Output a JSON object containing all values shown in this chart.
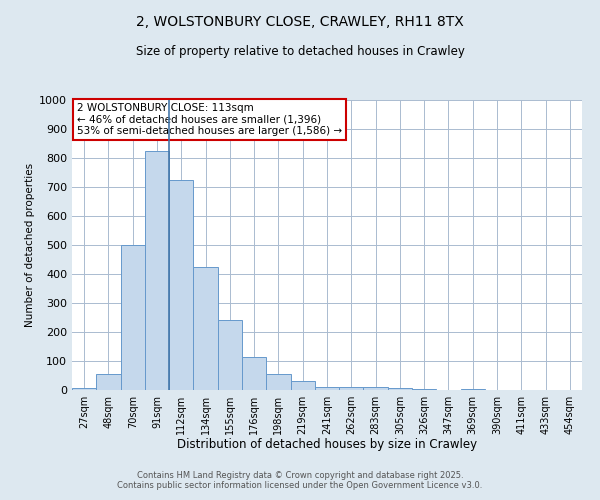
{
  "title1": "2, WOLSTONBURY CLOSE, CRAWLEY, RH11 8TX",
  "title2": "Size of property relative to detached houses in Crawley",
  "xlabel": "Distribution of detached houses by size in Crawley",
  "ylabel": "Number of detached properties",
  "bar_labels": [
    "27sqm",
    "48sqm",
    "70sqm",
    "91sqm",
    "112sqm",
    "134sqm",
    "155sqm",
    "176sqm",
    "198sqm",
    "219sqm",
    "241sqm",
    "262sqm",
    "283sqm",
    "305sqm",
    "326sqm",
    "347sqm",
    "369sqm",
    "390sqm",
    "411sqm",
    "433sqm",
    "454sqm"
  ],
  "bar_heights": [
    8,
    55,
    500,
    825,
    725,
    425,
    240,
    115,
    55,
    32,
    12,
    10,
    12,
    8,
    5,
    0,
    5,
    0,
    0,
    0,
    0
  ],
  "bar_color": "#c5d8ec",
  "bar_edge_color": "#6699cc",
  "vline_x": 4,
  "vline_color": "#4477aa",
  "ylim": [
    0,
    1000
  ],
  "yticks": [
    0,
    100,
    200,
    300,
    400,
    500,
    600,
    700,
    800,
    900,
    1000
  ],
  "annotation_title": "2 WOLSTONBURY CLOSE: 113sqm",
  "annotation_line1": "← 46% of detached houses are smaller (1,396)",
  "annotation_line2": "53% of semi-detached houses are larger (1,586) →",
  "annotation_box_color": "#cc0000",
  "grid_color": "#aabbd0",
  "bg_color": "#dde8f0",
  "footer1": "Contains HM Land Registry data © Crown copyright and database right 2025.",
  "footer2": "Contains public sector information licensed under the Open Government Licence v3.0."
}
